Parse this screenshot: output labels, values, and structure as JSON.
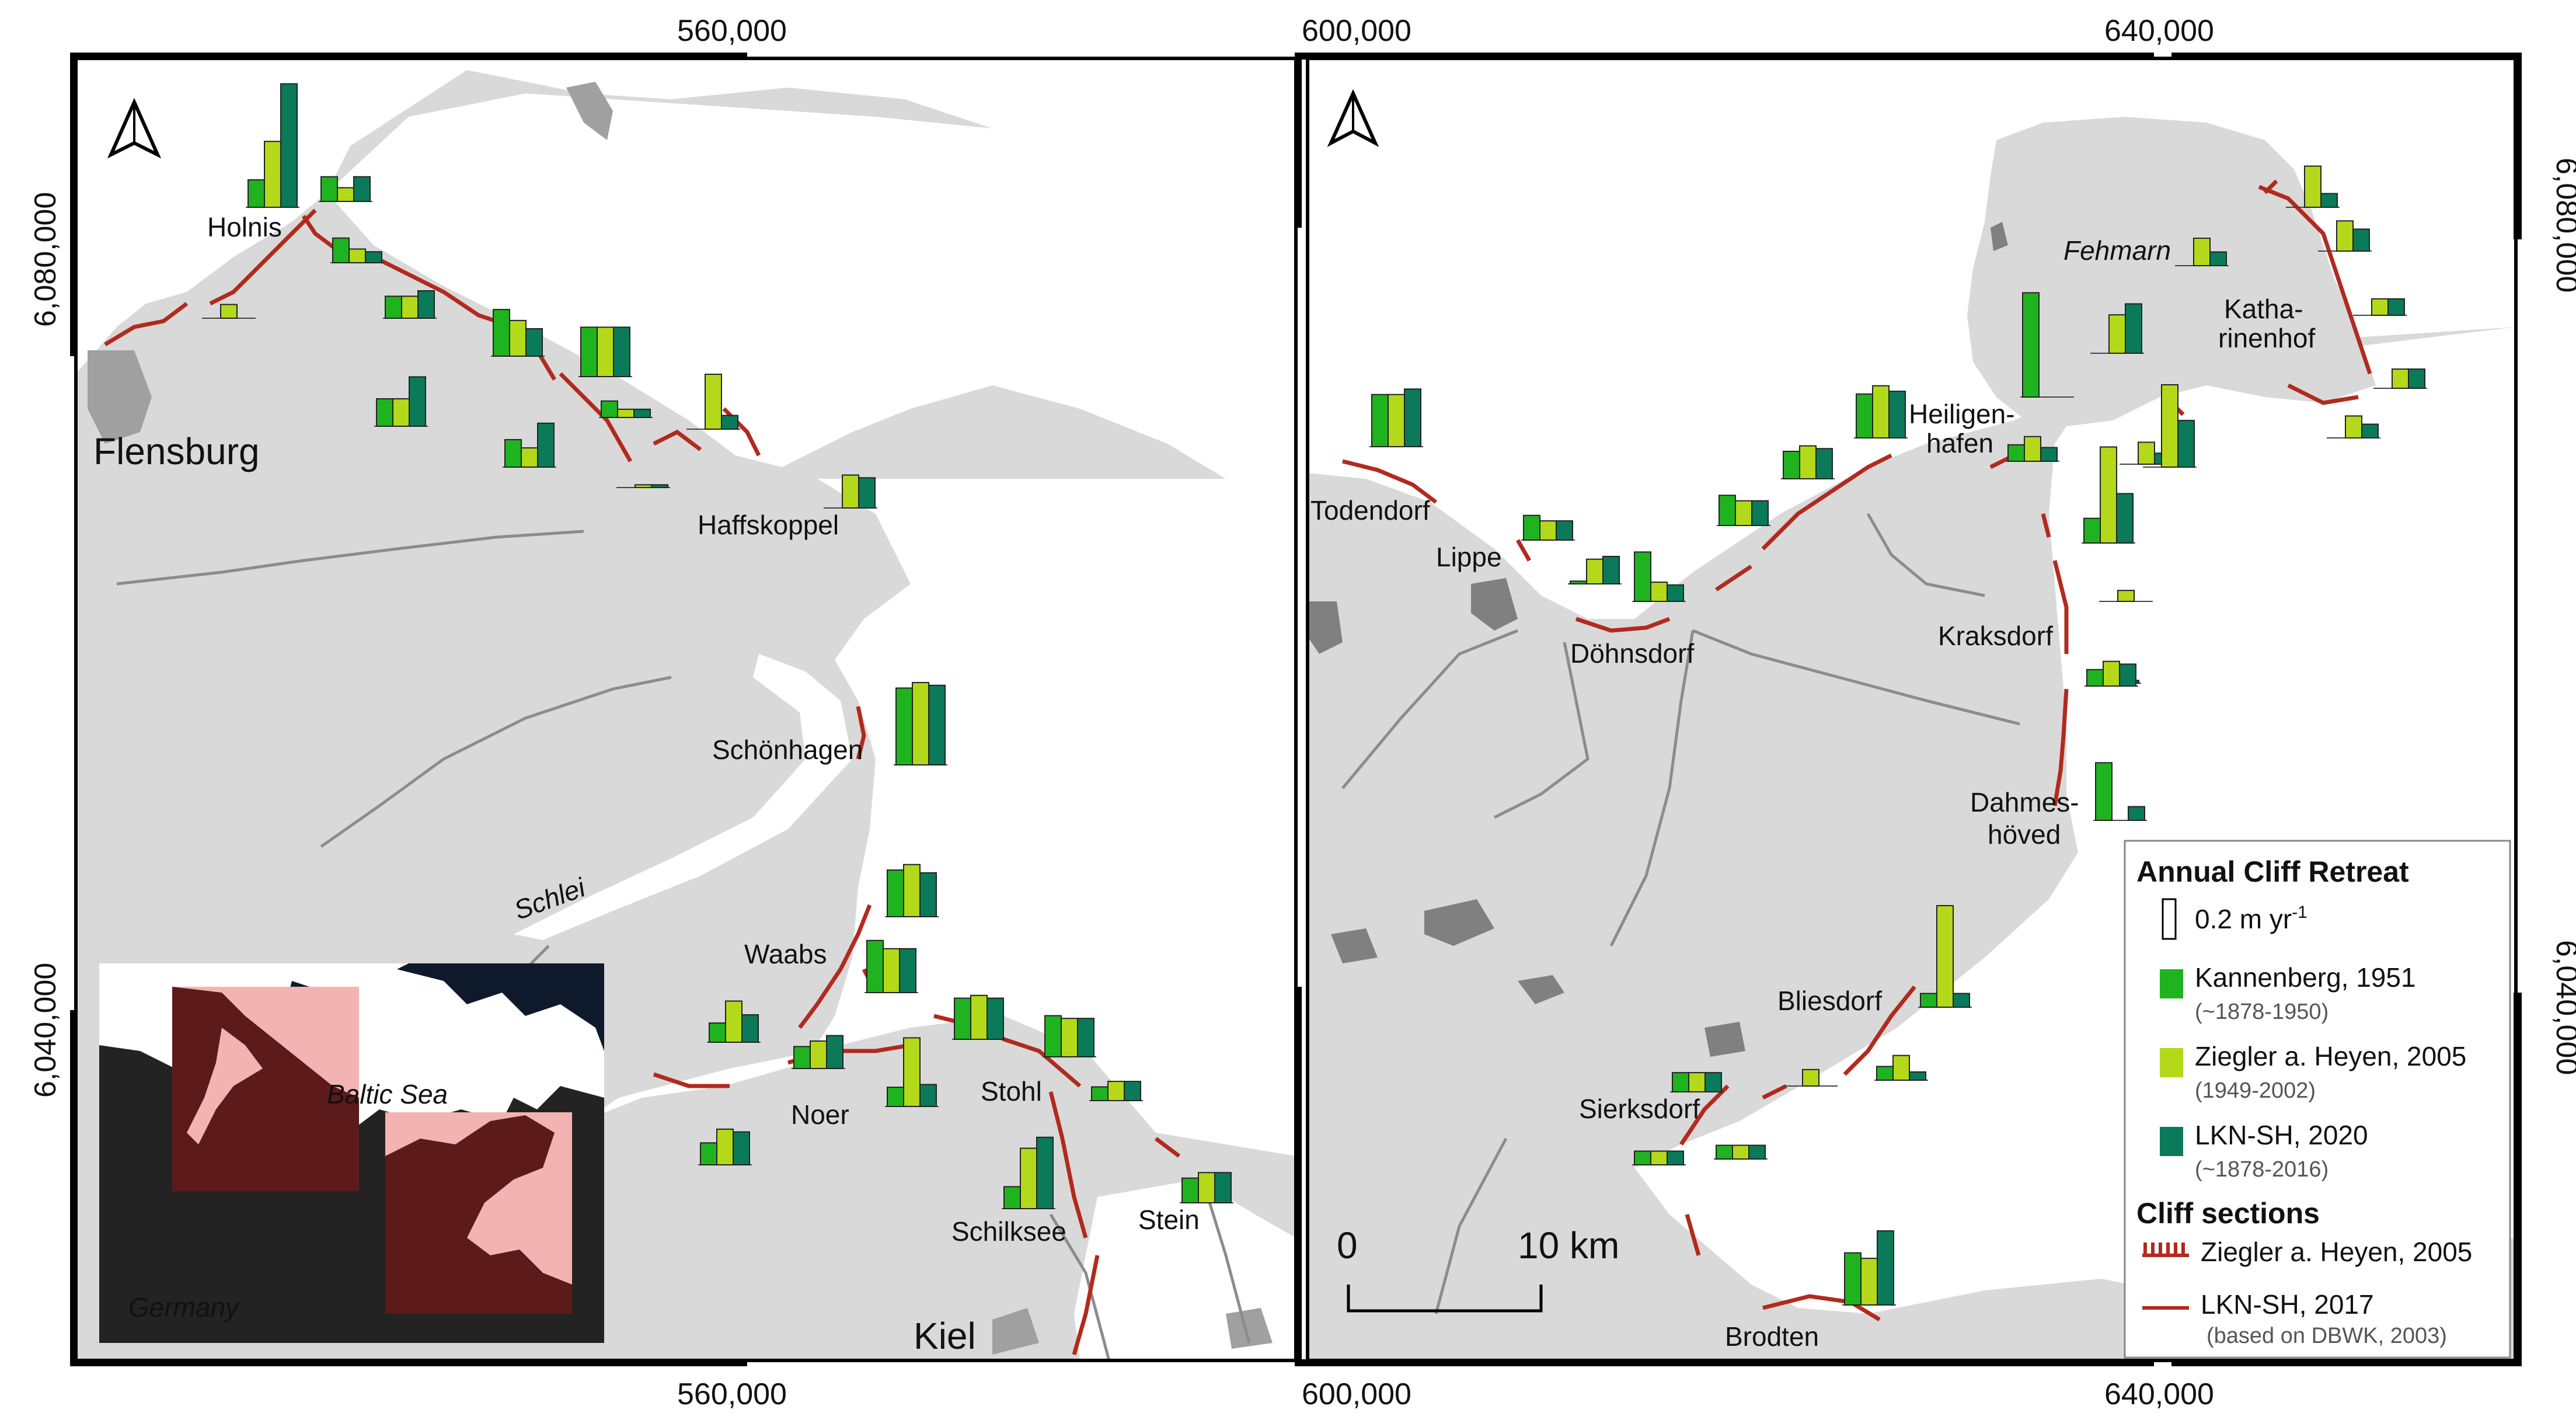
{
  "colors": {
    "kannenberg": "#1fb31f",
    "ziegler": "#b3d91a",
    "lkn": "#0a7a5a",
    "cliff": "#b22a1e",
    "land": "#d9d9d9",
    "sea": "#ffffff",
    "dark_land": "#808080"
  },
  "coords": {
    "top_left": "560,000",
    "top_right_a": "600,000",
    "top_right_b": "640,000",
    "bottom_left": "560,000",
    "bottom_right_a": "600,000",
    "bottom_right_b": "640,000",
    "left_upper": "6,080,000",
    "left_lower": "6,040,000",
    "right_upper": "6,080,000",
    "right_lower": "6,040,000"
  },
  "left_places": {
    "holnis": "Holnis",
    "flensburg": "Flensburg",
    "haffskoppel": "Haffskoppel",
    "schoenhagen": "Schönhagen",
    "schlei": "Schlei",
    "waabs": "Waabs",
    "noer": "Noer",
    "stohl": "Stohl",
    "schilksee": "Schilksee",
    "stein": "Stein",
    "kiel": "Kiel"
  },
  "right_places": {
    "fehmarn": "Fehmarn",
    "katharinenhof_1": "Katha-",
    "katharinenhof_2": "rinenhof",
    "heiligenhafen_1": "Heiligen-",
    "heiligenhafen_2": "hafen",
    "todendorf": "Todendorf",
    "lippe": "Lippe",
    "doehnsdorf": "Döhnsdorf",
    "kraksdorf": "Kraksdorf",
    "dahmeshoeved_1": "Dahmes-",
    "dahmeshoeved_2": "höved",
    "bliesdorf": "Bliesdorf",
    "sierksdorf": "Sierksdorf",
    "brodten": "Brodten"
  },
  "inset": {
    "baltic_sea": "Baltic Sea",
    "germany": "Germany"
  },
  "scalebar": {
    "zero": "0",
    "ten": "10 km"
  },
  "legend": {
    "title": "Annual Cliff Retreat",
    "scale_value": "0.2 m yr",
    "scale_sup": "-1",
    "kannenberg": "Kannenberg, 1951",
    "kannenberg_period": "(~1878-1950)",
    "ziegler": "Ziegler a. Heyen, 2005",
    "ziegler_period": "(1949-2002)",
    "lkn": "LKN-SH, 2020",
    "lkn_period": "(~1878-2016)",
    "sections_title": "Cliff sections",
    "section_ziegler": "Ziegler a. Heyen, 2005",
    "section_lkn": "LKN-SH, 2017",
    "section_lkn_note": "(based on DBWK, 2003)"
  },
  "bars_left": [
    {
      "name": "holnis-bars",
      "v": [
        0.1,
        0.24,
        0.45
      ]
    },
    {
      "name": "holnis-east-bars",
      "v": [
        0.09,
        0.05,
        0.09
      ]
    },
    {
      "name": "holnis-south-bars",
      "v": [
        0.09,
        0.05,
        0.04
      ]
    },
    {
      "name": "west-small-bars",
      "v": [
        0.0,
        0.05,
        0.0
      ]
    },
    {
      "name": "gluecksburg-bars",
      "v": [
        0.08,
        0.08,
        0.1
      ]
    },
    {
      "name": "mid-north-bars",
      "v": [
        0.17,
        0.13,
        0.1
      ]
    },
    {
      "name": "mid-north-2-bars",
      "v": [
        0.18,
        0.18,
        0.18
      ]
    },
    {
      "name": "mid-lower-bars",
      "v": [
        0.1,
        0.1,
        0.18
      ]
    },
    {
      "name": "mid-low-2-bars",
      "v": [
        0.1,
        0.07,
        0.16
      ]
    },
    {
      "name": "small-mid-bars",
      "v": [
        0.06,
        0.03,
        0.03
      ]
    },
    {
      "name": "small-low-bars",
      "v": [
        0.0,
        0.01,
        0.01
      ]
    },
    {
      "name": "ziegler-peak-bars",
      "v": [
        0.0,
        0.2,
        0.05
      ]
    },
    {
      "name": "haffskoppel-bars",
      "v": [
        0.0,
        0.12,
        0.11
      ]
    },
    {
      "name": "schoenhagen-bars",
      "v": [
        0.28,
        0.3,
        0.29
      ]
    },
    {
      "name": "waabs-north-bars",
      "v": [
        0.17,
        0.19,
        0.16
      ]
    },
    {
      "name": "waabs-bars",
      "v": [
        0.19,
        0.16,
        0.16
      ]
    },
    {
      "name": "west-noer-bars",
      "v": [
        0.07,
        0.15,
        0.1
      ]
    },
    {
      "name": "noer-bars",
      "v": [
        0.08,
        0.1,
        0.12
      ]
    },
    {
      "name": "stohl-west-bars",
      "v": [
        0.07,
        0.25,
        0.08
      ]
    },
    {
      "name": "stohl-north-bars",
      "v": [
        0.15,
        0.16,
        0.15
      ]
    },
    {
      "name": "stohl-mid-bars",
      "v": [
        0.15,
        0.14,
        0.14
      ]
    },
    {
      "name": "stohl-east-bars",
      "v": [
        0.05,
        0.07,
        0.07
      ]
    },
    {
      "name": "noer-south-bars",
      "v": [
        0.08,
        0.13,
        0.12
      ]
    },
    {
      "name": "schilksee-bars",
      "v": [
        0.08,
        0.22,
        0.26
      ]
    },
    {
      "name": "stein-bars",
      "v": [
        0.09,
        0.11,
        0.11
      ]
    }
  ],
  "bars_right": [
    {
      "name": "todendorf-bars",
      "v": [
        0.19,
        0.19,
        0.21
      ]
    },
    {
      "name": "lippe-east-bars",
      "v": [
        0.09,
        0.07,
        0.07
      ]
    },
    {
      "name": "lippe-bars",
      "v": [
        0.01,
        0.09,
        0.1
      ]
    },
    {
      "name": "doehnsdorf-bars",
      "v": [
        0.18,
        0.07,
        0.06
      ]
    },
    {
      "name": "west-heil-bars",
      "v": [
        0.11,
        0.09,
        0.09
      ]
    },
    {
      "name": "west-heil-2-bars",
      "v": [
        0.1,
        0.12,
        0.11
      ]
    },
    {
      "name": "heiligenhafen-bars",
      "v": [
        0.16,
        0.19,
        0.17
      ]
    },
    {
      "name": "heil-east-bars",
      "v": [
        0.06,
        0.09,
        0.05
      ]
    },
    {
      "name": "fehmarn-south-bars",
      "v": [
        0.38,
        0.0,
        0.0
      ]
    },
    {
      "name": "fehmarn-mid-bars",
      "v": [
        0.0,
        0.14,
        0.18
      ]
    },
    {
      "name": "fehmarn-mid-2-bars",
      "v": [
        0.09,
        0.35,
        0.18
      ]
    },
    {
      "name": "fehmarn-east-bars",
      "v": [
        0.0,
        0.08,
        0.04
      ]
    },
    {
      "name": "sund-bars",
      "v": [
        0.0,
        0.3,
        0.17
      ]
    },
    {
      "name": "fehmarn-s-bars",
      "v": [
        0.0,
        0.04,
        0.0
      ]
    },
    {
      "name": "fehmarn-ne-bars",
      "v": [
        0.0,
        0.15,
        0.05
      ]
    },
    {
      "name": "fehmarn-ne-2-bars",
      "v": [
        0.0,
        0.11,
        0.08
      ]
    },
    {
      "name": "fehmarn-ne-3-bars",
      "v": [
        0.0,
        0.06,
        0.06
      ]
    },
    {
      "name": "katharinenhof-bars",
      "v": [
        0.0,
        0.1,
        0.05
      ]
    },
    {
      "name": "katharinenhof-2-bars",
      "v": [
        0.0,
        0.07,
        0.07
      ]
    },
    {
      "name": "katharinenhof-3-bars",
      "v": [
        0.0,
        0.08,
        0.05
      ]
    },
    {
      "name": "kraksdorf-north-bars",
      "v": [
        0.0,
        0.01,
        0.01
      ]
    },
    {
      "name": "kraksdorf-bars",
      "v": [
        0.06,
        0.09,
        0.08
      ]
    },
    {
      "name": "dahmeshoeved-bars",
      "v": [
        0.21,
        0.0,
        0.05
      ]
    },
    {
      "name": "bliesdorf-bars",
      "v": [
        0.05,
        0.37,
        0.05
      ]
    },
    {
      "name": "bliesdorf-south-bars",
      "v": [
        0.05,
        0.09,
        0.03
      ]
    },
    {
      "name": "sierksdorf-north-bars",
      "v": [
        0.07,
        0.07,
        0.07
      ]
    },
    {
      "name": "sierksdorf-east-bars",
      "v": [
        0.0,
        0.06,
        0.0
      ]
    },
    {
      "name": "sierksdorf-bars",
      "v": [
        0.05,
        0.05,
        0.05
      ]
    },
    {
      "name": "sierksdorf-south-bars",
      "v": [
        0.05,
        0.05,
        0.05
      ]
    },
    {
      "name": "brodten-bars",
      "v": [
        0.19,
        0.17,
        0.27
      ]
    }
  ]
}
